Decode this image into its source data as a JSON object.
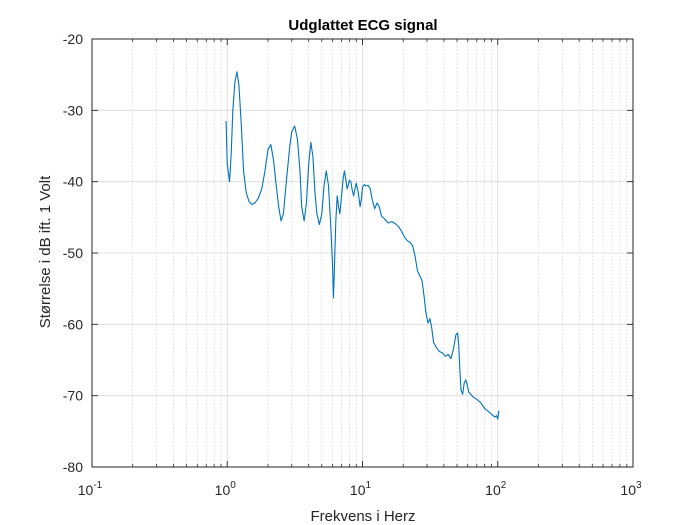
{
  "chart_data": {
    "type": "line",
    "title": "Udglattet ECG signal",
    "xlabel": "Frekvens i Herz",
    "ylabel": "Størrelse i dB ift. 1 Volt",
    "xscale": "log",
    "xlim": [
      0.1,
      1000
    ],
    "ylim": [
      -80,
      -20
    ],
    "xticks": [
      {
        "base": "10",
        "exp": "-1"
      },
      {
        "base": "10",
        "exp": "0"
      },
      {
        "base": "10",
        "exp": "1"
      },
      {
        "base": "10",
        "exp": "2"
      },
      {
        "base": "10",
        "exp": "3"
      }
    ],
    "yticks": [
      "-20",
      "-30",
      "-40",
      "-50",
      "-60",
      "-70",
      "-80"
    ],
    "grid": "major and minor",
    "line_color": "#0072bd",
    "series": [
      {
        "x": [
          0.98,
          1.0,
          1.04,
          1.07,
          1.1,
          1.14,
          1.18,
          1.22,
          1.27,
          1.32,
          1.38,
          1.45,
          1.52,
          1.6,
          1.7,
          1.8,
          1.9,
          2.0,
          2.1,
          2.2,
          2.3,
          2.4,
          2.5,
          2.6,
          2.75,
          2.9,
          3.0,
          3.15,
          3.3,
          3.45,
          3.55,
          3.7,
          3.85,
          4.0,
          4.15,
          4.3,
          4.45,
          4.6,
          4.8,
          5.0,
          5.2,
          5.4,
          5.6,
          5.8,
          6.0,
          6.1,
          6.2,
          6.35,
          6.5,
          6.65,
          6.8,
          7.0,
          7.2,
          7.35,
          7.5,
          7.7,
          7.85,
          8.0,
          8.2,
          8.4,
          8.6,
          8.8,
          9.0,
          9.3,
          9.6,
          9.8,
          10.0,
          10.3,
          10.6,
          11.0,
          11.4,
          11.8,
          12.3,
          12.8,
          13.3,
          13.8,
          14.5,
          15.5,
          16.5,
          17.5,
          18.5,
          19.5,
          20.5,
          21.5,
          22.5,
          23.5,
          24.5,
          25.5,
          26.5,
          27.5,
          28.5,
          29.5,
          30.5,
          31.5,
          32.5,
          33.5,
          35.0,
          37.0,
          39.0,
          41.0,
          43.0,
          45.0,
          47.0,
          49.0,
          50.5,
          51.5,
          52.5,
          53.5,
          55.0,
          56.5,
          58.0,
          59.5,
          61.0,
          63.0,
          66.0,
          70.0,
          75.0,
          80.0,
          85.0,
          90.0,
          95.0,
          98.0,
          100.0,
          102.0
        ],
        "y": [
          -31.5,
          -37.5,
          -40.0,
          -36.0,
          -30.0,
          -26.0,
          -24.6,
          -26.5,
          -32.0,
          -38.5,
          -41.5,
          -42.8,
          -43.2,
          -43.0,
          -42.3,
          -41.0,
          -38.5,
          -35.5,
          -34.8,
          -37.0,
          -40.5,
          -43.5,
          -45.5,
          -44.5,
          -39.5,
          -35.0,
          -33.0,
          -32.2,
          -34.0,
          -38.5,
          -43.5,
          -45.5,
          -43.0,
          -37.5,
          -34.5,
          -36.5,
          -41.5,
          -44.5,
          -46.0,
          -44.5,
          -40.5,
          -38.5,
          -40.5,
          -45.5,
          -51.5,
          -56.3,
          -52.0,
          -45.5,
          -42.0,
          -43.5,
          -44.5,
          -42.0,
          -39.5,
          -38.5,
          -39.5,
          -41.0,
          -40.5,
          -39.8,
          -40.0,
          -41.2,
          -42.0,
          -41.0,
          -40.2,
          -41.5,
          -43.5,
          -42.5,
          -40.8,
          -40.4,
          -40.6,
          -40.5,
          -41.0,
          -42.5,
          -43.8,
          -43.0,
          -43.5,
          -44.8,
          -45.2,
          -45.8,
          -45.6,
          -45.9,
          -46.3,
          -47.0,
          -47.8,
          -48.3,
          -48.5,
          -49.0,
          -50.5,
          -52.5,
          -53.2,
          -53.8,
          -56.0,
          -58.5,
          -59.8,
          -59.2,
          -60.5,
          -62.5,
          -63.2,
          -63.8,
          -64.0,
          -64.5,
          -64.2,
          -64.8,
          -63.5,
          -61.5,
          -61.2,
          -63.0,
          -66.5,
          -69.2,
          -69.8,
          -68.2,
          -67.8,
          -68.5,
          -69.5,
          -69.8,
          -70.2,
          -70.5,
          -71.0,
          -71.8,
          -72.2,
          -72.6,
          -73.0,
          -72.8,
          -73.3,
          -72.1
        ]
      }
    ]
  }
}
